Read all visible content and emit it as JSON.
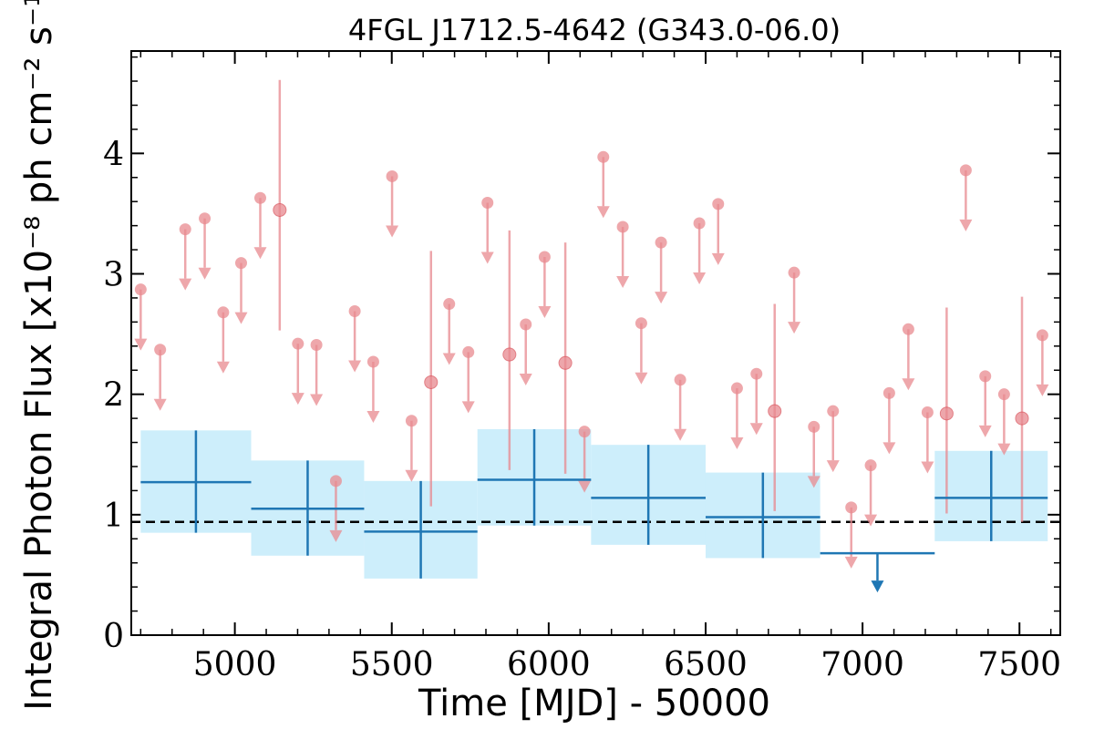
{
  "chart_data": {
    "type": "scatter",
    "title": "4FGL J1712.5-4642 (G343.0-06.0)",
    "xlabel": "Time [MJD] - 50000",
    "ylabel": "Integral Photon Flux [x10⁻⁸ ph cm⁻² s⁻¹]",
    "xlim": [
      4670,
      7630
    ],
    "ylim": [
      0,
      4.85
    ],
    "x_ticks": [
      "5000",
      "5500",
      "6000",
      "6500",
      "7000",
      "7500"
    ],
    "y_ticks": [
      "0",
      "1",
      "2",
      "3",
      "4"
    ],
    "reference_level": 0.94,
    "colors": {
      "short_bins": "#e8898f",
      "long_bins": "#1f77b4",
      "long_band": "#cdeefb",
      "reference": "#000000"
    },
    "series": [
      {
        "kind": "short-bins",
        "detections": [
          {
            "x": 5143,
            "y": 3.53,
            "lo": 2.53,
            "hi": 4.61
          },
          {
            "x": 5625,
            "y": 2.1,
            "lo": 1.07,
            "hi": 3.19
          },
          {
            "x": 5875,
            "y": 2.33,
            "lo": 1.37,
            "hi": 3.36
          },
          {
            "x": 6053,
            "y": 2.26,
            "lo": 1.34,
            "hi": 3.26
          },
          {
            "x": 6720,
            "y": 1.86,
            "lo": 1.03,
            "hi": 2.75
          },
          {
            "x": 7268,
            "y": 1.84,
            "lo": 1.01,
            "hi": 2.72
          },
          {
            "x": 7508,
            "y": 1.8,
            "lo": 0.94,
            "hi": 2.81
          }
        ],
        "upper_limits": [
          {
            "x": 4700,
            "y": 2.87
          },
          {
            "x": 4762,
            "y": 2.37
          },
          {
            "x": 4842,
            "y": 3.37
          },
          {
            "x": 4904,
            "y": 3.46
          },
          {
            "x": 4963,
            "y": 2.68
          },
          {
            "x": 5020,
            "y": 3.09
          },
          {
            "x": 5081,
            "y": 3.63
          },
          {
            "x": 5201,
            "y": 2.42
          },
          {
            "x": 5260,
            "y": 2.41
          },
          {
            "x": 5322,
            "y": 1.28
          },
          {
            "x": 5382,
            "y": 2.69
          },
          {
            "x": 5441,
            "y": 2.27
          },
          {
            "x": 5501,
            "y": 3.81
          },
          {
            "x": 5563,
            "y": 1.78
          },
          {
            "x": 5683,
            "y": 2.75
          },
          {
            "x": 5744,
            "y": 2.35
          },
          {
            "x": 5805,
            "y": 3.59
          },
          {
            "x": 5927,
            "y": 2.58
          },
          {
            "x": 5987,
            "y": 3.14
          },
          {
            "x": 6114,
            "y": 1.69
          },
          {
            "x": 6174,
            "y": 3.97
          },
          {
            "x": 6236,
            "y": 3.39
          },
          {
            "x": 6295,
            "y": 2.59
          },
          {
            "x": 6358,
            "y": 3.26
          },
          {
            "x": 6419,
            "y": 2.12
          },
          {
            "x": 6480,
            "y": 3.42
          },
          {
            "x": 6540,
            "y": 3.58
          },
          {
            "x": 6600,
            "y": 2.05
          },
          {
            "x": 6662,
            "y": 2.17
          },
          {
            "x": 6782,
            "y": 3.01
          },
          {
            "x": 6845,
            "y": 1.73
          },
          {
            "x": 6906,
            "y": 1.86
          },
          {
            "x": 6964,
            "y": 1.06
          },
          {
            "x": 7026,
            "y": 1.41
          },
          {
            "x": 7085,
            "y": 2.01
          },
          {
            "x": 7146,
            "y": 2.54
          },
          {
            "x": 7207,
            "y": 1.85
          },
          {
            "x": 7329,
            "y": 3.86
          },
          {
            "x": 7391,
            "y": 2.15
          },
          {
            "x": 7451,
            "y": 2.0
          },
          {
            "x": 7573,
            "y": 2.49
          }
        ]
      },
      {
        "kind": "long-bins",
        "bins": [
          {
            "x0": 4700,
            "x1": 5052,
            "y": 1.27,
            "lo": 0.85,
            "hi": 1.7
          },
          {
            "x0": 5052,
            "x1": 5412,
            "y": 1.05,
            "lo": 0.66,
            "hi": 1.45
          },
          {
            "x0": 5412,
            "x1": 5773,
            "y": 0.86,
            "lo": 0.47,
            "hi": 1.28
          },
          {
            "x0": 5773,
            "x1": 6135,
            "y": 1.29,
            "lo": 0.91,
            "hi": 1.71
          },
          {
            "x0": 6135,
            "x1": 6500,
            "y": 1.14,
            "lo": 0.75,
            "hi": 1.58
          },
          {
            "x0": 6500,
            "x1": 6865,
            "y": 0.98,
            "lo": 0.64,
            "hi": 1.35
          },
          {
            "x0": 7230,
            "x1": 7590,
            "y": 1.14,
            "lo": 0.78,
            "hi": 1.53
          }
        ],
        "upper_limits": [
          {
            "x0": 6865,
            "x1": 7230,
            "y": 0.68
          }
        ]
      }
    ]
  }
}
